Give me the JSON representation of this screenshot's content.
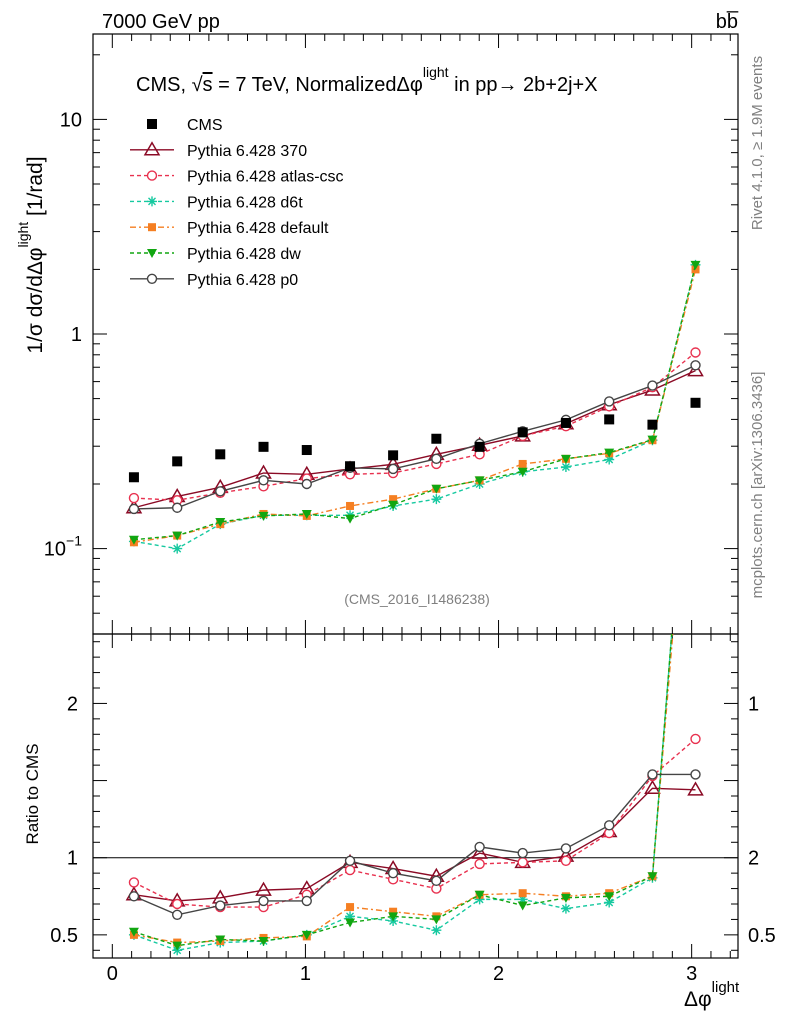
{
  "header": {
    "left": "7000 GeV pp",
    "right": "bb̅"
  },
  "side": {
    "rivet": "Rivet 4.1.0, ≥ 1.9M events",
    "mcplots": "mcplots.cern.ch [arXiv:1306.3436]"
  },
  "chart_data": {
    "type": "line",
    "title": "CMS, √s = 7 TeV, NormalizedΔφ light in pp→ 2b+2j+X",
    "title_parts": {
      "prefix": "CMS, ",
      "sqrt": "√",
      "s": "s",
      "mid": " = 7 TeV, NormalizedΔφ",
      "sup": "light",
      "suffix": " in pp→  2b+2j+X"
    },
    "watermark": "(CMS_2016_I1486238)",
    "ylabel": {
      "main": "1/σ dσ/dΔφ",
      "sup": "light",
      "unit": "[1/rad]"
    },
    "xlabel": {
      "main": "Δφ",
      "sup": "light"
    },
    "ratio_ylabel": "Ratio to CMS",
    "yscale": "log",
    "ylim": [
      0.04,
      25
    ],
    "xlim": [
      -0.1,
      3.24
    ],
    "ratio_ylim": [
      0.35,
      2.45
    ],
    "x_ticks": [
      "0",
      "1",
      "2",
      "3"
    ],
    "y_ticks": [
      "10",
      "1"
    ],
    "y_tick_minus1": {
      "base": "10",
      "exp": "−1"
    },
    "ratio_ticks": [
      "2",
      "1",
      "0.5",
      "1",
      "2",
      "0.5"
    ],
    "x": [
      0.112,
      0.336,
      0.559,
      0.783,
      1.007,
      1.231,
      1.454,
      1.678,
      1.902,
      2.125,
      2.349,
      2.573,
      2.797,
      3.02
    ],
    "series": [
      {
        "name": "CMS",
        "color": "#000000",
        "marker": "square",
        "dash": "none",
        "values": [
          0.215,
          0.255,
          0.275,
          0.298,
          0.288,
          0.242,
          0.272,
          0.325,
          0.298,
          0.348,
          0.385,
          0.4,
          0.378,
          0.478
        ],
        "ratio": [
          1,
          1,
          1,
          1,
          1,
          1,
          1,
          1,
          1,
          1,
          1,
          1,
          1,
          1
        ]
      },
      {
        "name": "Pythia 6.428 370",
        "color": "#8b0a25",
        "marker": "triangle-open",
        "dash": "none",
        "values": [
          0.155,
          0.175,
          0.193,
          0.225,
          0.222,
          0.235,
          0.247,
          0.275,
          0.303,
          0.335,
          0.382,
          0.468,
          0.548,
          0.675
        ],
        "ratio": [
          0.76,
          0.72,
          0.74,
          0.79,
          0.8,
          0.97,
          0.93,
          0.88,
          1.03,
          0.97,
          1.01,
          1.17,
          1.45,
          1.44
        ]
      },
      {
        "name": "Pythia 6.428 atlas-csc",
        "color": "#e8314f",
        "marker": "circle-open",
        "dash": "4,3",
        "values": [
          0.172,
          0.168,
          0.182,
          0.195,
          0.212,
          0.222,
          0.225,
          0.248,
          0.275,
          0.335,
          0.372,
          0.46,
          0.565,
          0.82
        ],
        "ratio": [
          0.84,
          0.7,
          0.68,
          0.68,
          0.76,
          0.92,
          0.86,
          0.8,
          0.96,
          0.97,
          0.98,
          1.16,
          1.53,
          1.77
        ]
      },
      {
        "name": "Pythia 6.428 d6t",
        "color": "#16c9a0",
        "marker": "star",
        "dash": "4,3",
        "values": [
          0.108,
          0.1,
          0.13,
          0.143,
          0.143,
          0.143,
          0.158,
          0.17,
          0.2,
          0.228,
          0.24,
          0.26,
          0.32,
          2.1
        ],
        "ratio": [
          0.5,
          0.4,
          0.45,
          0.46,
          0.5,
          0.62,
          0.59,
          0.53,
          0.73,
          0.73,
          0.67,
          0.71,
          0.87,
          4.4
        ]
      },
      {
        "name": "Pythia 6.428 default",
        "color": "#f57f22",
        "marker": "square-small",
        "dash": "6,3,2,3",
        "values": [
          0.107,
          0.115,
          0.13,
          0.145,
          0.142,
          0.158,
          0.17,
          0.19,
          0.208,
          0.248,
          0.262,
          0.278,
          0.32,
          2.0
        ],
        "ratio": [
          0.5,
          0.45,
          0.46,
          0.48,
          0.49,
          0.68,
          0.65,
          0.62,
          0.76,
          0.77,
          0.75,
          0.77,
          0.88,
          4.2
        ]
      },
      {
        "name": "Pythia 6.428 dw",
        "color": "#11a611",
        "marker": "triangle-down",
        "dash": "4,3",
        "values": [
          0.11,
          0.115,
          0.133,
          0.142,
          0.145,
          0.138,
          0.16,
          0.19,
          0.208,
          0.228,
          0.262,
          0.28,
          0.322,
          2.1
        ],
        "ratio": [
          0.52,
          0.43,
          0.47,
          0.46,
          0.5,
          0.58,
          0.62,
          0.6,
          0.76,
          0.69,
          0.74,
          0.75,
          0.88,
          4.4
        ]
      },
      {
        "name": "Pythia 6.428 p0",
        "color": "#454545",
        "marker": "circle-open",
        "dash": "none",
        "values": [
          0.153,
          0.155,
          0.185,
          0.208,
          0.2,
          0.238,
          0.235,
          0.262,
          0.308,
          0.352,
          0.398,
          0.485,
          0.575,
          0.715
        ],
        "ratio": [
          0.75,
          0.63,
          0.69,
          0.72,
          0.72,
          0.98,
          0.9,
          0.85,
          1.07,
          1.03,
          1.06,
          1.21,
          1.54,
          1.54
        ]
      }
    ]
  }
}
